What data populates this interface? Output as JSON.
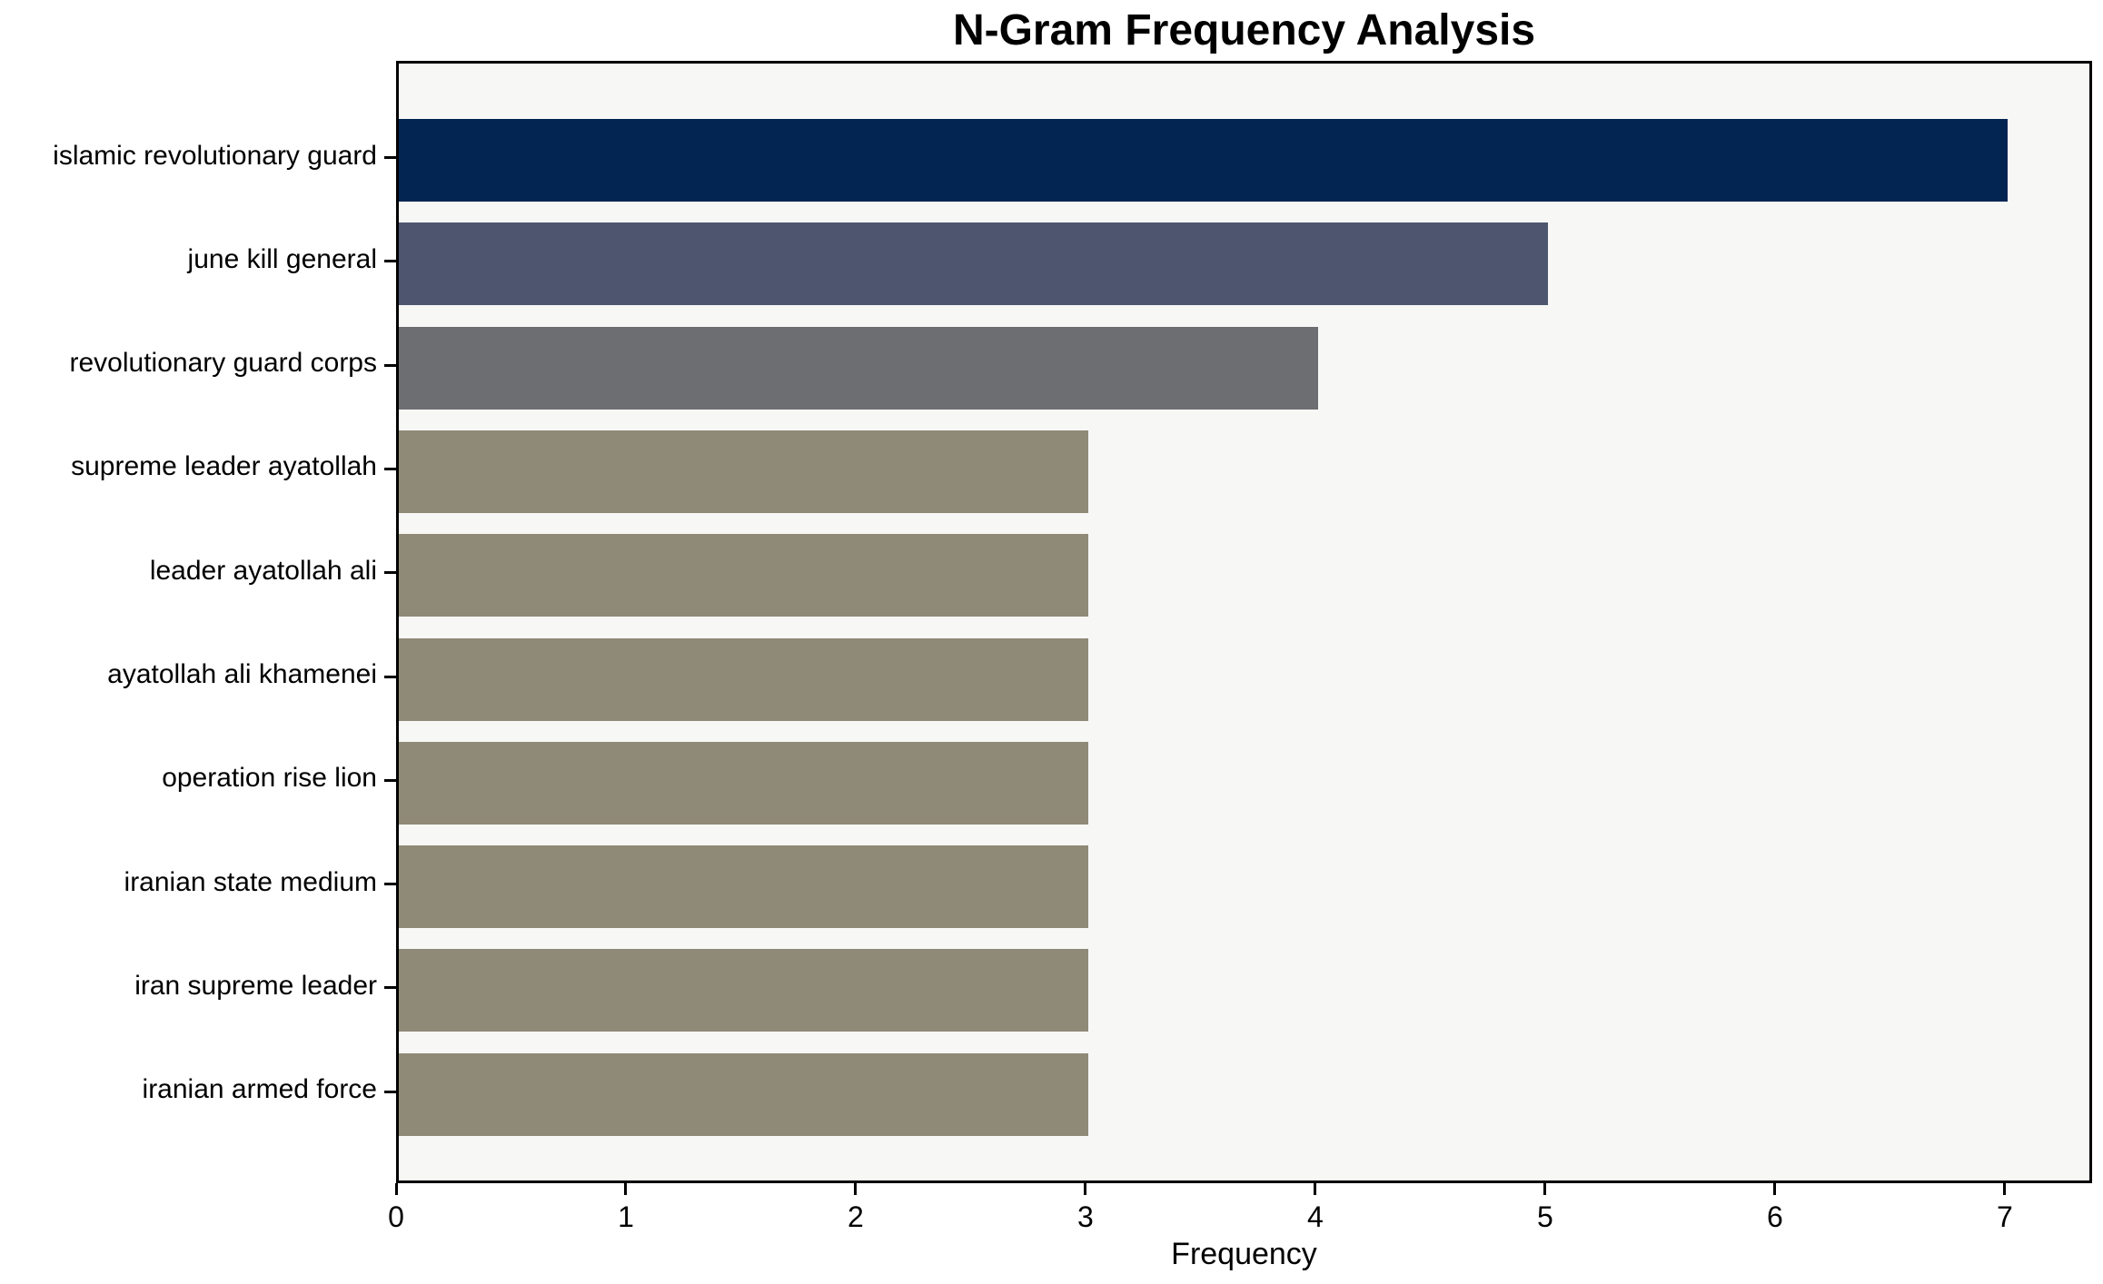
{
  "chart_data": {
    "type": "bar",
    "orientation": "horizontal",
    "title": "N-Gram Frequency Analysis",
    "xlabel": "Frequency",
    "ylabel": "",
    "categories": [
      "islamic revolutionary guard",
      "june kill general",
      "revolutionary guard corps",
      "supreme leader ayatollah",
      "leader ayatollah ali",
      "ayatollah ali khamenei",
      "operation rise lion",
      "iranian state medium",
      "iran supreme leader",
      "iranian armed force"
    ],
    "values": [
      7,
      5,
      4,
      3,
      3,
      3,
      3,
      3,
      3,
      3
    ],
    "x_ticks": [
      0,
      1,
      2,
      3,
      4,
      5,
      6,
      7
    ],
    "xlim": [
      0,
      7.38
    ],
    "grid": false,
    "legend_position": "none",
    "bar_colors": [
      "#032551",
      "#4d566e",
      "#6d6e71",
      "#8f8978",
      "#8f8978",
      "#8f8978",
      "#8f8978",
      "#8f8978",
      "#8f8978",
      "#8f8978"
    ],
    "plot_background": "#f7f7f5",
    "figure_background": "#ffffff",
    "spine_color": "#000000",
    "text_color": "#000000"
  }
}
